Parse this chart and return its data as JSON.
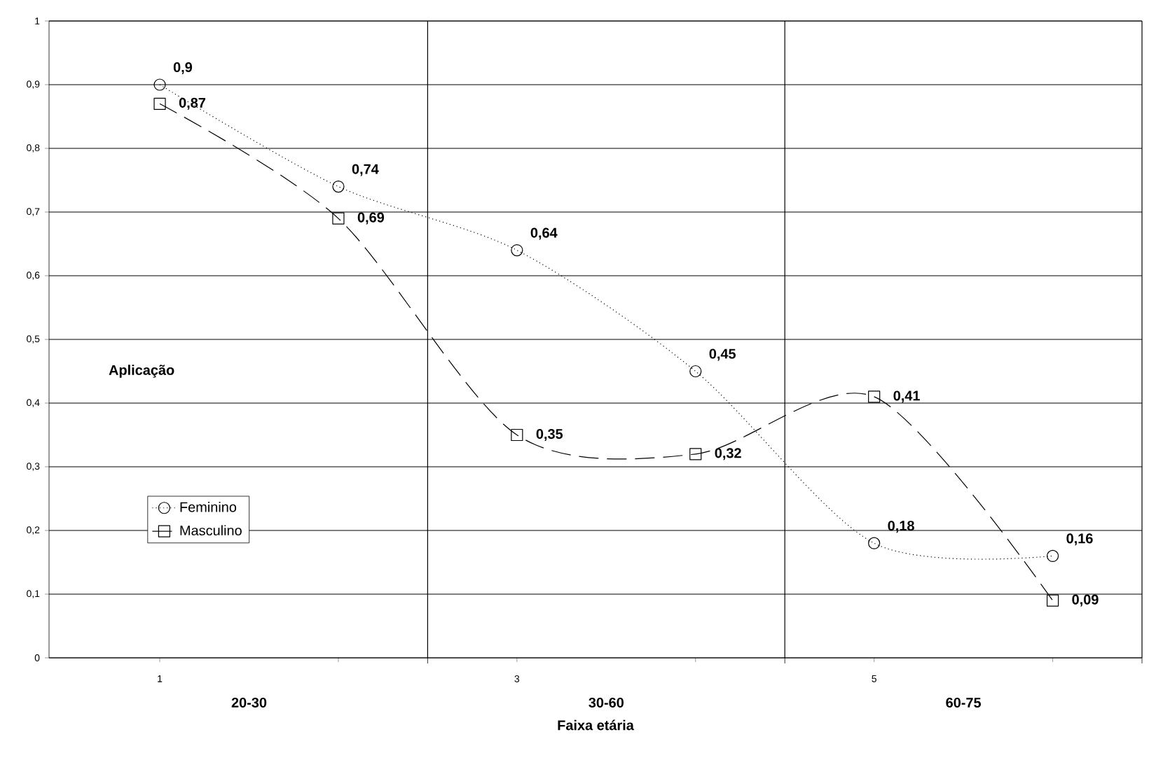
{
  "chart_data": {
    "type": "line",
    "xlabel": "Faixa etária",
    "categories": [
      "1",
      null,
      "3",
      null,
      "5",
      null
    ],
    "series": [
      {
        "name": "Feminino",
        "color": "#000000",
        "marker": "circle",
        "line_style": "dotted",
        "values": [
          0.9,
          0.74,
          0.64,
          0.45,
          0.18,
          0.16
        ],
        "value_labels": [
          "0,9",
          "0,74",
          "0,64",
          "0,45",
          "0,18",
          "0,16"
        ]
      },
      {
        "name": "Masculino",
        "color": "#000000",
        "marker": "square",
        "line_style": "dashed",
        "values": [
          0.87,
          0.69,
          0.35,
          0.32,
          0.41,
          0.09
        ],
        "value_labels": [
          "0,87",
          "0,69",
          "0,35",
          "0,32",
          "0,41",
          "0,09"
        ]
      }
    ],
    "ylim": [
      0,
      1
    ],
    "yticks": [
      0,
      {
        "value": 0.1,
        "label": "0,1"
      },
      {
        "value": 0.2,
        "label": "0,2"
      },
      {
        "value": 0.3,
        "label": "0,3"
      },
      {
        "value": 0.4,
        "label": "0,4"
      },
      {
        "value": 0.5,
        "label": "0,5"
      },
      {
        "value": 0.6,
        "label": "0,6"
      },
      {
        "value": 0.7,
        "label": "0,7"
      },
      {
        "value": 0.8,
        "label": "0,8"
      },
      {
        "value": 0.9,
        "label": "0,9"
      },
      1
    ],
    "grid": "y",
    "legend": "bottom left",
    "annotations": [
      "Aplicação",
      "20-30",
      "30-60",
      "60-75"
    ]
  }
}
